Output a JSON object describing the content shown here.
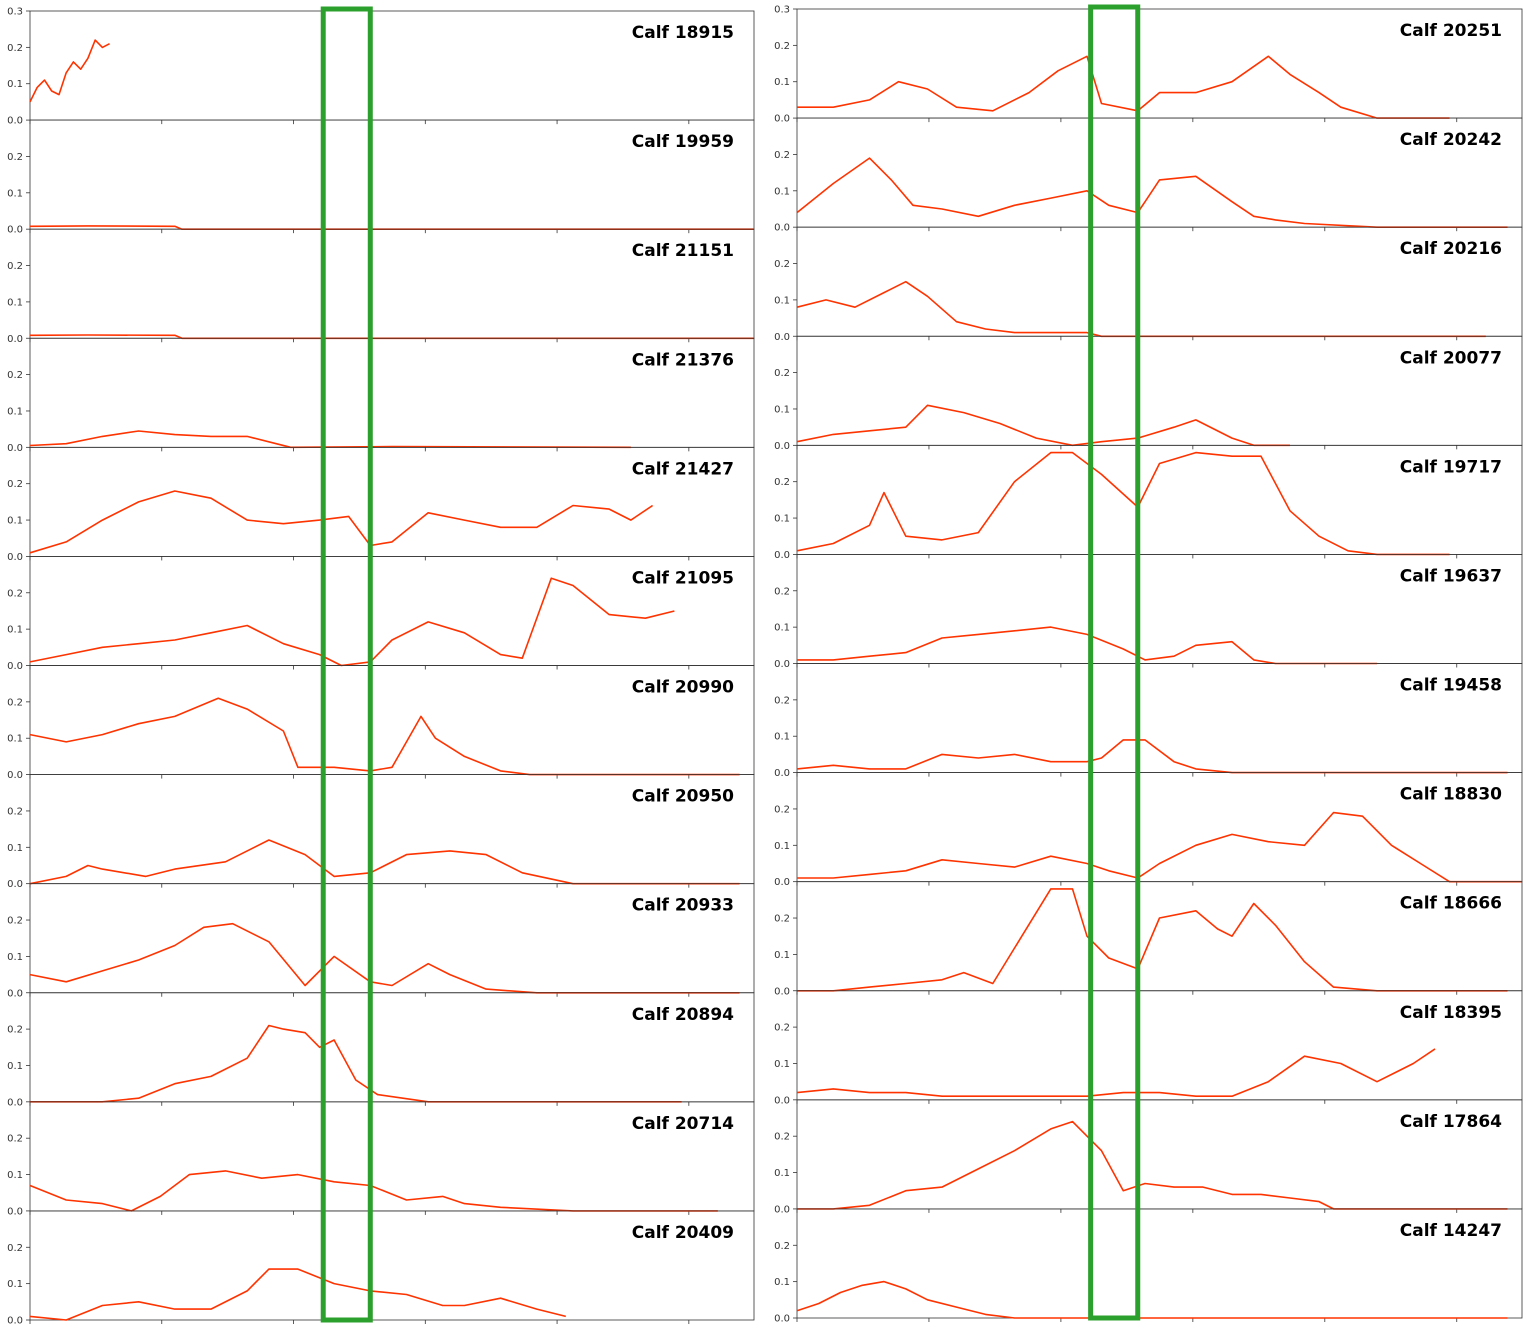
{
  "colors": {
    "series": "#ff3300",
    "highlight": "#2ca02c",
    "axis": "#333333",
    "background": "#ffffff"
  },
  "chart_data": [
    {
      "type": "line",
      "layout": "grid-of-small-multiples",
      "column": "left",
      "ylim": [
        0,
        0.3
      ],
      "y_ticks": [
        0.0,
        0.1,
        0.2,
        0.3
      ],
      "xlim": [
        0,
        1
      ],
      "grid": false,
      "highlight_x_range": [
        0.405,
        0.47
      ],
      "panels": [
        {
          "title": "Calf 18915",
          "x": [
            0,
            0.01,
            0.02,
            0.03,
            0.04,
            0.05,
            0.06,
            0.07,
            0.08,
            0.09,
            0.1,
            0.11
          ],
          "y": [
            0.05,
            0.09,
            0.11,
            0.08,
            0.07,
            0.13,
            0.16,
            0.14,
            0.17,
            0.22,
            0.2,
            0.21
          ]
        },
        {
          "title": "Calf 19959",
          "x": [
            0,
            0.08,
            0.2,
            0.21,
            1.0
          ],
          "y": [
            0.008,
            0.009,
            0.008,
            0.0,
            0.0
          ]
        },
        {
          "title": "Calf 21151",
          "x": [
            0,
            0.08,
            0.2,
            0.21,
            1.0
          ],
          "y": [
            0.008,
            0.009,
            0.008,
            0.0,
            0.0
          ]
        },
        {
          "title": "Calf 21376",
          "x": [
            0,
            0.05,
            0.1,
            0.15,
            0.2,
            0.25,
            0.3,
            0.34,
            0.36,
            0.5,
            0.83
          ],
          "y": [
            0.005,
            0.01,
            0.03,
            0.045,
            0.035,
            0.03,
            0.03,
            0.01,
            0.0,
            0.002,
            0.0
          ]
        },
        {
          "title": "Calf 21427",
          "x": [
            0,
            0.05,
            0.1,
            0.15,
            0.2,
            0.25,
            0.3,
            0.35,
            0.4,
            0.44,
            0.47,
            0.5,
            0.55,
            0.6,
            0.65,
            0.7,
            0.75,
            0.8,
            0.83,
            0.86
          ],
          "y": [
            0.01,
            0.04,
            0.1,
            0.15,
            0.18,
            0.16,
            0.1,
            0.09,
            0.1,
            0.11,
            0.03,
            0.04,
            0.12,
            0.1,
            0.08,
            0.08,
            0.14,
            0.13,
            0.1,
            0.14
          ]
        },
        {
          "title": "Calf 21095",
          "x": [
            0,
            0.05,
            0.1,
            0.15,
            0.2,
            0.25,
            0.3,
            0.35,
            0.4,
            0.43,
            0.47,
            0.5,
            0.55,
            0.6,
            0.65,
            0.68,
            0.72,
            0.75,
            0.8,
            0.85,
            0.89
          ],
          "y": [
            0.01,
            0.03,
            0.05,
            0.06,
            0.07,
            0.09,
            0.11,
            0.06,
            0.03,
            0.0,
            0.01,
            0.07,
            0.12,
            0.09,
            0.03,
            0.02,
            0.24,
            0.22,
            0.14,
            0.13,
            0.15
          ]
        },
        {
          "title": "Calf 20990",
          "x": [
            0,
            0.05,
            0.1,
            0.15,
            0.2,
            0.26,
            0.3,
            0.35,
            0.37,
            0.42,
            0.47,
            0.5,
            0.54,
            0.56,
            0.6,
            0.65,
            0.69,
            0.8,
            0.98
          ],
          "y": [
            0.11,
            0.09,
            0.11,
            0.14,
            0.16,
            0.21,
            0.18,
            0.12,
            0.02,
            0.02,
            0.01,
            0.02,
            0.16,
            0.1,
            0.05,
            0.01,
            0.0,
            0.0,
            0.0
          ]
        },
        {
          "title": "Calf 20950",
          "x": [
            0,
            0.05,
            0.08,
            0.1,
            0.16,
            0.2,
            0.27,
            0.33,
            0.38,
            0.42,
            0.47,
            0.52,
            0.58,
            0.63,
            0.68,
            0.75,
            0.98
          ],
          "y": [
            0.0,
            0.02,
            0.05,
            0.04,
            0.02,
            0.04,
            0.06,
            0.12,
            0.08,
            0.02,
            0.03,
            0.08,
            0.09,
            0.08,
            0.03,
            0.0,
            0.0
          ]
        },
        {
          "title": "Calf 20933",
          "x": [
            0,
            0.05,
            0.1,
            0.15,
            0.2,
            0.24,
            0.28,
            0.33,
            0.38,
            0.42,
            0.47,
            0.5,
            0.55,
            0.58,
            0.63,
            0.7,
            0.98
          ],
          "y": [
            0.05,
            0.03,
            0.06,
            0.09,
            0.13,
            0.18,
            0.19,
            0.14,
            0.02,
            0.1,
            0.03,
            0.02,
            0.08,
            0.05,
            0.01,
            0.0,
            0.0
          ]
        },
        {
          "title": "Calf 20894",
          "x": [
            0,
            0.1,
            0.15,
            0.2,
            0.25,
            0.3,
            0.33,
            0.35,
            0.38,
            0.4,
            0.42,
            0.45,
            0.48,
            0.55,
            0.8,
            0.9
          ],
          "y": [
            0.0,
            0.0,
            0.01,
            0.05,
            0.07,
            0.12,
            0.21,
            0.2,
            0.19,
            0.15,
            0.17,
            0.06,
            0.02,
            0.0,
            0.0,
            0.0
          ]
        },
        {
          "title": "Calf 20714",
          "x": [
            0,
            0.05,
            0.1,
            0.14,
            0.18,
            0.22,
            0.27,
            0.32,
            0.37,
            0.42,
            0.47,
            0.52,
            0.57,
            0.6,
            0.65,
            0.75,
            0.95
          ],
          "y": [
            0.07,
            0.03,
            0.02,
            0.0,
            0.04,
            0.1,
            0.11,
            0.09,
            0.1,
            0.08,
            0.07,
            0.03,
            0.04,
            0.02,
            0.01,
            0.0,
            0.0
          ]
        },
        {
          "title": "Calf 20409",
          "x": [
            0,
            0.05,
            0.1,
            0.15,
            0.2,
            0.25,
            0.3,
            0.33,
            0.37,
            0.42,
            0.47,
            0.52,
            0.57,
            0.6,
            0.65,
            0.7,
            0.74
          ],
          "y": [
            0.01,
            0.0,
            0.04,
            0.05,
            0.03,
            0.03,
            0.08,
            0.14,
            0.14,
            0.1,
            0.08,
            0.07,
            0.04,
            0.04,
            0.06,
            0.03,
            0.01
          ]
        }
      ]
    },
    {
      "type": "line",
      "layout": "grid-of-small-multiples",
      "column": "right",
      "ylim": [
        0,
        0.3
      ],
      "y_ticks": [
        0.0,
        0.1,
        0.2,
        0.3
      ],
      "xlim": [
        0,
        1
      ],
      "grid": false,
      "highlight_x_range": [
        0.405,
        0.47
      ],
      "panels": [
        {
          "title": "Calf 20251",
          "x": [
            0,
            0.05,
            0.1,
            0.14,
            0.18,
            0.22,
            0.27,
            0.32,
            0.36,
            0.4,
            0.42,
            0.47,
            0.5,
            0.55,
            0.6,
            0.65,
            0.68,
            0.72,
            0.75,
            0.8,
            0.85,
            0.9
          ],
          "y": [
            0.03,
            0.03,
            0.05,
            0.1,
            0.08,
            0.03,
            0.02,
            0.07,
            0.13,
            0.17,
            0.04,
            0.02,
            0.07,
            0.07,
            0.1,
            0.17,
            0.12,
            0.07,
            0.03,
            0.0,
            0.0,
            0.0
          ]
        },
        {
          "title": "Calf 20242",
          "x": [
            0,
            0.05,
            0.1,
            0.13,
            0.16,
            0.2,
            0.25,
            0.3,
            0.35,
            0.4,
            0.43,
            0.47,
            0.5,
            0.55,
            0.6,
            0.63,
            0.66,
            0.7,
            0.8,
            0.98
          ],
          "y": [
            0.04,
            0.12,
            0.19,
            0.13,
            0.06,
            0.05,
            0.03,
            0.06,
            0.08,
            0.1,
            0.06,
            0.04,
            0.13,
            0.14,
            0.07,
            0.03,
            0.02,
            0.01,
            0.0,
            0.0
          ]
        },
        {
          "title": "Calf 20216",
          "x": [
            0,
            0.04,
            0.08,
            0.12,
            0.15,
            0.18,
            0.22,
            0.26,
            0.3,
            0.35,
            0.4,
            0.42,
            0.5,
            0.7,
            0.95
          ],
          "y": [
            0.08,
            0.1,
            0.08,
            0.12,
            0.15,
            0.11,
            0.04,
            0.02,
            0.01,
            0.01,
            0.01,
            0.0,
            0.0,
            0.0,
            0.0
          ]
        },
        {
          "title": "Calf 20077",
          "x": [
            0,
            0.05,
            0.1,
            0.15,
            0.18,
            0.23,
            0.28,
            0.33,
            0.38,
            0.42,
            0.47,
            0.52,
            0.55,
            0.6,
            0.63,
            0.68
          ],
          "y": [
            0.01,
            0.03,
            0.04,
            0.05,
            0.11,
            0.09,
            0.06,
            0.02,
            0.0,
            0.01,
            0.02,
            0.05,
            0.07,
            0.02,
            0.0,
            0.0
          ]
        },
        {
          "title": "Calf 19717",
          "x": [
            0,
            0.05,
            0.1,
            0.12,
            0.15,
            0.2,
            0.25,
            0.3,
            0.35,
            0.38,
            0.42,
            0.47,
            0.5,
            0.55,
            0.6,
            0.64,
            0.68,
            0.72,
            0.76,
            0.8,
            0.9
          ],
          "y": [
            0.01,
            0.03,
            0.08,
            0.17,
            0.05,
            0.04,
            0.06,
            0.2,
            0.28,
            0.28,
            0.22,
            0.13,
            0.25,
            0.28,
            0.27,
            0.27,
            0.12,
            0.05,
            0.01,
            0.0,
            0.0
          ]
        },
        {
          "title": "Calf 19637",
          "x": [
            0,
            0.05,
            0.1,
            0.15,
            0.2,
            0.25,
            0.3,
            0.35,
            0.4,
            0.45,
            0.48,
            0.52,
            0.55,
            0.6,
            0.63,
            0.66,
            0.8
          ],
          "y": [
            0.01,
            0.01,
            0.02,
            0.03,
            0.07,
            0.08,
            0.09,
            0.1,
            0.08,
            0.04,
            0.01,
            0.02,
            0.05,
            0.06,
            0.01,
            0.0,
            0.0
          ]
        },
        {
          "title": "Calf 19458",
          "x": [
            0,
            0.05,
            0.1,
            0.15,
            0.2,
            0.25,
            0.3,
            0.35,
            0.4,
            0.42,
            0.45,
            0.48,
            0.52,
            0.55,
            0.6,
            0.7,
            0.98
          ],
          "y": [
            0.01,
            0.02,
            0.01,
            0.01,
            0.05,
            0.04,
            0.05,
            0.03,
            0.03,
            0.04,
            0.09,
            0.09,
            0.03,
            0.01,
            0.0,
            0.0,
            0.0
          ]
        },
        {
          "title": "Calf 18830",
          "x": [
            0,
            0.05,
            0.1,
            0.15,
            0.2,
            0.25,
            0.3,
            0.35,
            0.4,
            0.43,
            0.47,
            0.5,
            0.55,
            0.6,
            0.65,
            0.7,
            0.74,
            0.78,
            0.82,
            0.86,
            0.9,
            1.0
          ],
          "y": [
            0.01,
            0.01,
            0.02,
            0.03,
            0.06,
            0.05,
            0.04,
            0.07,
            0.05,
            0.03,
            0.01,
            0.05,
            0.1,
            0.13,
            0.11,
            0.1,
            0.19,
            0.18,
            0.1,
            0.05,
            0.0,
            0.0
          ]
        },
        {
          "title": "Calf 18666",
          "x": [
            0,
            0.05,
            0.1,
            0.15,
            0.2,
            0.23,
            0.27,
            0.31,
            0.35,
            0.38,
            0.4,
            0.43,
            0.47,
            0.5,
            0.55,
            0.58,
            0.6,
            0.63,
            0.66,
            0.7,
            0.74,
            0.8,
            0.98
          ],
          "y": [
            0.0,
            0.0,
            0.01,
            0.02,
            0.03,
            0.05,
            0.02,
            0.15,
            0.28,
            0.28,
            0.15,
            0.09,
            0.06,
            0.2,
            0.22,
            0.17,
            0.15,
            0.24,
            0.18,
            0.08,
            0.01,
            0.0,
            0.0
          ]
        },
        {
          "title": "Calf 18395",
          "x": [
            0,
            0.05,
            0.1,
            0.15,
            0.2,
            0.3,
            0.4,
            0.45,
            0.5,
            0.55,
            0.6,
            0.65,
            0.7,
            0.75,
            0.8,
            0.85,
            0.88
          ],
          "y": [
            0.02,
            0.03,
            0.02,
            0.02,
            0.01,
            0.01,
            0.01,
            0.02,
            0.02,
            0.01,
            0.01,
            0.05,
            0.12,
            0.1,
            0.05,
            0.1,
            0.14
          ]
        },
        {
          "title": "Calf 17864",
          "x": [
            0,
            0.05,
            0.1,
            0.15,
            0.2,
            0.25,
            0.3,
            0.35,
            0.38,
            0.42,
            0.45,
            0.48,
            0.52,
            0.56,
            0.6,
            0.64,
            0.68,
            0.72,
            0.74,
            0.8,
            0.98
          ],
          "y": [
            0.0,
            0.0,
            0.01,
            0.05,
            0.06,
            0.11,
            0.16,
            0.22,
            0.24,
            0.16,
            0.05,
            0.07,
            0.06,
            0.06,
            0.04,
            0.04,
            0.03,
            0.02,
            0.0,
            0.0,
            0.0
          ]
        },
        {
          "title": "Calf 14247",
          "x": [
            0,
            0.03,
            0.06,
            0.09,
            0.12,
            0.15,
            0.18,
            0.22,
            0.26,
            0.3,
            0.4,
            0.6,
            0.98
          ],
          "y": [
            0.02,
            0.04,
            0.07,
            0.09,
            0.1,
            0.08,
            0.05,
            0.03,
            0.01,
            0.0,
            0.0,
            0.0,
            0.0
          ]
        }
      ]
    }
  ]
}
